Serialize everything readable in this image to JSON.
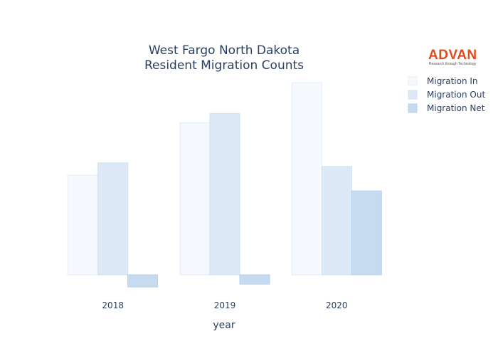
{
  "chart_data": {
    "type": "bar",
    "title_lines": [
      "West Fargo North Dakota",
      "Resident Migration Counts"
    ],
    "xlabel": "year",
    "ylabel": "",
    "categories": [
      "2018",
      "2019",
      "2020"
    ],
    "series": [
      {
        "name": "Migration In",
        "values": [
          1390,
          2120,
          2680
        ],
        "color": "#f5f9fd",
        "stroke": "#e3ecf7"
      },
      {
        "name": "Migration Out",
        "values": [
          1560,
          2250,
          1510
        ],
        "color": "#dde9f6",
        "stroke": "#cfdff1"
      },
      {
        "name": "Migration Net",
        "values": [
          -170,
          -130,
          1170
        ],
        "color": "#c6dbef",
        "stroke": "#b7d1eb"
      }
    ],
    "ylim": [
      -400,
      3000
    ],
    "grid": false,
    "legend_position": "top-right"
  },
  "logo": {
    "word": "ADVAN",
    "tagline": "Research through Technology"
  }
}
